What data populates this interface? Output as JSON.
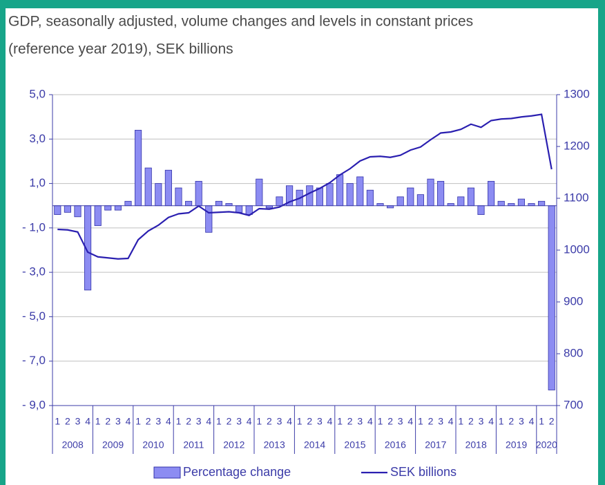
{
  "chart_data": {
    "type": "combo",
    "title": [
      "GDP, seasonally adjusted, volume changes and levels in constant prices",
      "(reference year 2019), SEK billions"
    ],
    "categories": [
      "1",
      "2",
      "3",
      "4",
      "1",
      "2",
      "3",
      "4",
      "1",
      "2",
      "3",
      "4",
      "1",
      "2",
      "3",
      "4",
      "1",
      "2",
      "3",
      "4",
      "1",
      "2",
      "3",
      "4",
      "1",
      "2",
      "3",
      "4",
      "1",
      "2",
      "3",
      "4",
      "1",
      "2",
      "3",
      "4",
      "1",
      "2",
      "3",
      "4",
      "1",
      "2",
      "3",
      "4",
      "1",
      "2",
      "3",
      "4",
      "1",
      "2"
    ],
    "groups": [
      "2008",
      "2009",
      "2010",
      "2011",
      "2012",
      "2013",
      "2014",
      "2015",
      "2016",
      "2017",
      "2018",
      "2019",
      "2020"
    ],
    "series": [
      {
        "name": "Percentage change",
        "type": "bar",
        "color": "#8c8cf2",
        "values": [
          -0.4,
          -0.3,
          -0.5,
          -3.8,
          -0.9,
          -0.2,
          -0.2,
          0.2,
          3.4,
          1.7,
          1.0,
          1.6,
          0.8,
          0.2,
          1.1,
          -1.2,
          0.2,
          0.1,
          -0.3,
          -0.4,
          1.2,
          -0.1,
          0.4,
          0.9,
          0.7,
          0.9,
          0.8,
          1.0,
          1.4,
          1.0,
          1.3,
          0.7,
          0.1,
          -0.1,
          0.4,
          0.8,
          0.5,
          1.2,
          1.1,
          0.1,
          0.4,
          0.8,
          -0.4,
          1.1,
          0.2,
          0.1,
          0.3,
          0.1,
          0.2,
          -8.3
        ]
      },
      {
        "name": "SEK billions",
        "type": "line",
        "axis": "y2",
        "color": "#2a1fb0",
        "values": [
          1040,
          1039,
          1035,
          996,
          987,
          985,
          983,
          984,
          1020,
          1037,
          1048,
          1063,
          1070,
          1072,
          1085,
          1072,
          1073,
          1074,
          1072,
          1067,
          1080,
          1079,
          1083,
          1093,
          1100,
          1110,
          1119,
          1130,
          1145,
          1157,
          1172,
          1180,
          1181,
          1179,
          1183,
          1193,
          1199,
          1213,
          1226,
          1228,
          1233,
          1243,
          1237,
          1250,
          1253,
          1254,
          1257,
          1259,
          1262,
          1156
        ]
      }
    ],
    "ylim": [
      -9,
      5
    ],
    "yticks": [
      {
        "value": 5,
        "label": "5,0"
      },
      {
        "value": 3,
        "label": "3,0"
      },
      {
        "value": 1,
        "label": "1,0"
      },
      {
        "value": -1,
        "label": "- 1,0"
      },
      {
        "value": -3,
        "label": "- 3,0"
      },
      {
        "value": -5,
        "label": "- 5,0"
      },
      {
        "value": -7,
        "label": "- 7,0"
      },
      {
        "value": -9,
        "label": "- 9,0"
      }
    ],
    "y2lim": [
      700,
      1300
    ],
    "y2ticks": [
      1300,
      1200,
      1100,
      1000,
      900,
      800,
      700
    ],
    "grid": true,
    "legend": "bottom"
  }
}
